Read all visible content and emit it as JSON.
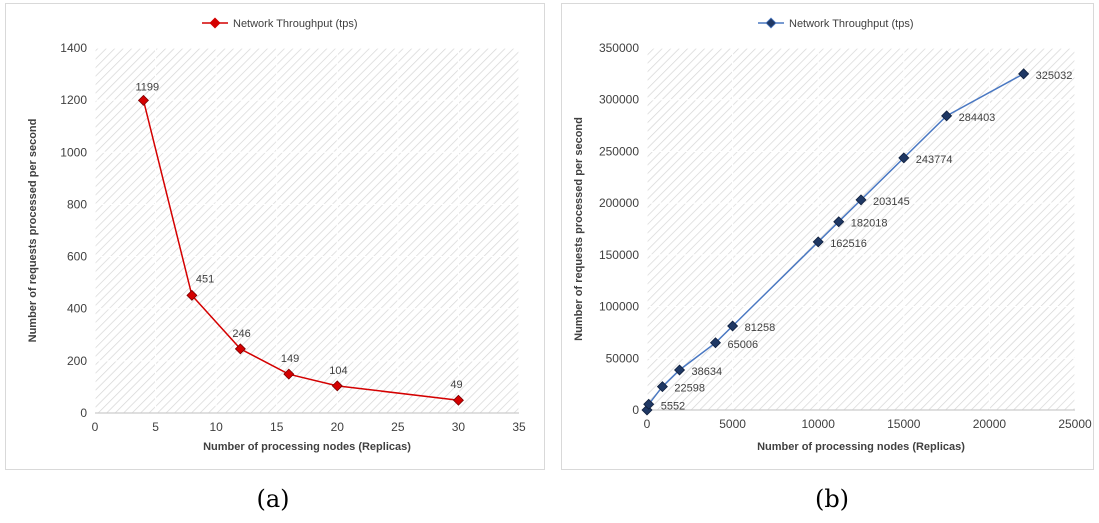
{
  "chart_data": [
    {
      "type": "line",
      "legend": "Network Throughput (tps)",
      "legend_position": "top",
      "xlabel": "Number of processing nodes (Replicas)",
      "ylabel": "Number of requests processed per second",
      "xlim": [
        0,
        35
      ],
      "ylim": [
        0,
        1400
      ],
      "xticks": [
        "0",
        "5",
        "10",
        "15",
        "20",
        "25",
        "30",
        "35"
      ],
      "yticks": [
        "0",
        "200",
        "400",
        "600",
        "800",
        "1000",
        "1200",
        "1400"
      ],
      "grid": true,
      "color": "#d40000",
      "marker_fill": "#d40000",
      "series": [
        {
          "name": "Network Throughput (tps)",
          "x": [
            4,
            8,
            12,
            16,
            20,
            30
          ],
          "y": [
            1199,
            451,
            246,
            149,
            104,
            49
          ],
          "labels": [
            "1199",
            "451",
            "246",
            "149",
            "104",
            "49"
          ]
        }
      ]
    },
    {
      "type": "line",
      "legend": "Network Throughput (tps)",
      "legend_position": "top",
      "xlabel": "Number of processing nodes (Replicas)",
      "ylabel": "Number of requests processed per second",
      "xlim": [
        0,
        25000
      ],
      "ylim": [
        0,
        350000
      ],
      "xticks": [
        "0",
        "5000",
        "10000",
        "15000",
        "20000",
        "25000"
      ],
      "yticks": [
        "0",
        "50000",
        "100000",
        "150000",
        "200000",
        "250000",
        "300000",
        "350000"
      ],
      "grid": true,
      "color": "#4a78c2",
      "marker_fill": "#1f3864",
      "series": [
        {
          "name": "Network Throughput (tps)",
          "x": [
            0,
            100,
            900,
            1900,
            4000,
            5000,
            10000,
            11200,
            12500,
            15000,
            17500,
            22000
          ],
          "y": [
            0,
            5552,
            22598,
            38634,
            65006,
            81258,
            162516,
            182018,
            203145,
            243774,
            284403,
            325032
          ],
          "labels": [
            "",
            "5552",
            "22598",
            "38634",
            "65006",
            "81258",
            "162516",
            "182018",
            "203145",
            "243774",
            "284403",
            "325032"
          ]
        }
      ]
    }
  ],
  "captions": {
    "a": "(a)",
    "b": "(b)"
  }
}
